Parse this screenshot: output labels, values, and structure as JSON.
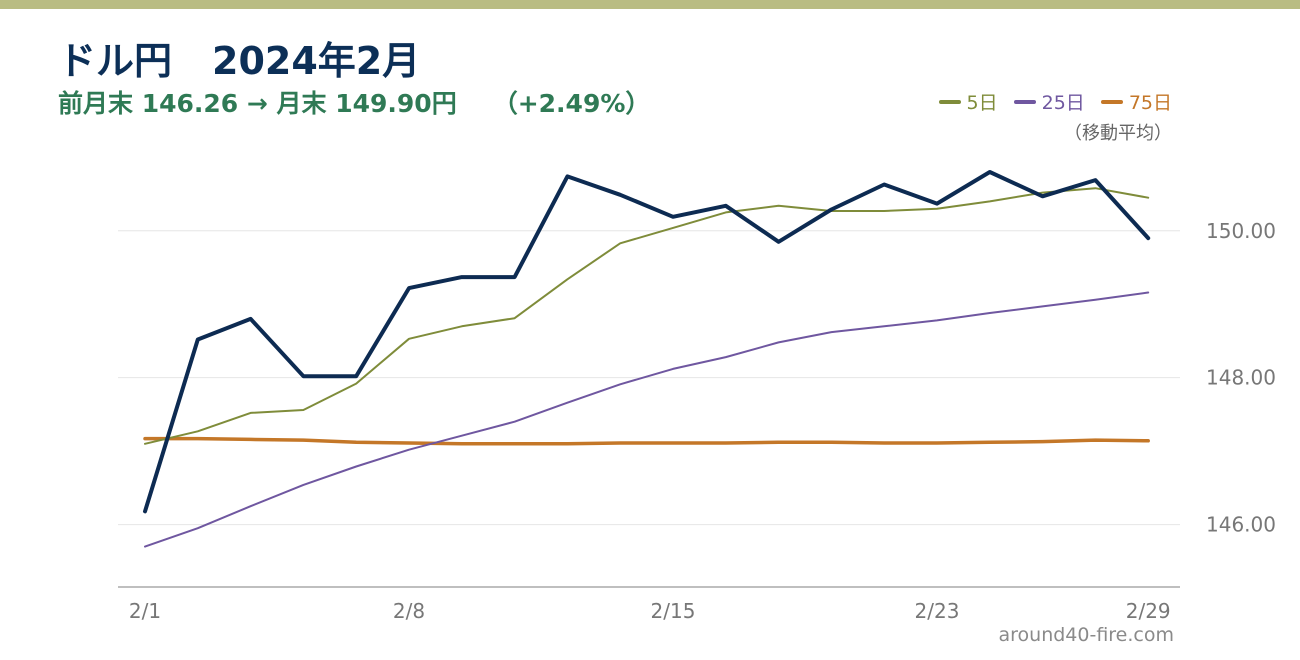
{
  "title": {
    "pair": "ドル円",
    "period": "2024年2月"
  },
  "subtitle": {
    "change_text": "前月末 146.26 → 月末 149.90円",
    "pct_text": "（+2.49%）"
  },
  "legend": {
    "note": "（移動平均）"
  },
  "watermark": "around40-fire.com",
  "colors": {
    "close": "#0d2b52",
    "ma5": "#7f8c3a",
    "ma25": "#6f57a0",
    "ma75": "#c47728",
    "grid": "#e6e6e6",
    "axis": "#aaaaaa"
  },
  "chart_data": {
    "type": "line",
    "x_ticks": [
      "2/1",
      "2/8",
      "2/15",
      "2/23",
      "2/29"
    ],
    "tick_index": [
      0,
      5,
      10,
      15,
      19
    ],
    "y_ticks": [
      "146.00",
      "148.00",
      "150.00"
    ],
    "y_tick_values": [
      146,
      148,
      150
    ],
    "ylim": [
      145.15,
      151.1
    ],
    "grid": "horizontal",
    "legend_position": "top-right",
    "series": [
      {
        "key": "close",
        "values": [
          146.18,
          148.52,
          148.8,
          148.02,
          148.02,
          149.22,
          149.37,
          149.37,
          150.74,
          150.49,
          150.19,
          150.34,
          149.85,
          150.29,
          150.63,
          150.37,
          150.8,
          150.47,
          150.69,
          149.9
        ]
      },
      {
        "key": "ma5",
        "name": "5日",
        "values": [
          147.1,
          147.27,
          147.52,
          147.56,
          147.92,
          148.53,
          148.7,
          148.81,
          149.34,
          149.83,
          150.04,
          150.25,
          150.34,
          150.27,
          150.27,
          150.3,
          150.4,
          150.52,
          150.58,
          150.45
        ]
      },
      {
        "key": "ma25",
        "name": "25日",
        "values": [
          145.7,
          145.95,
          146.25,
          146.54,
          146.79,
          147.02,
          147.21,
          147.4,
          147.66,
          147.91,
          148.12,
          148.28,
          148.48,
          148.62,
          148.7,
          148.78,
          148.88,
          148.97,
          149.06,
          149.16
        ]
      },
      {
        "key": "ma75",
        "name": "75日",
        "values": [
          147.17,
          147.17,
          147.16,
          147.15,
          147.12,
          147.11,
          147.1,
          147.1,
          147.1,
          147.11,
          147.11,
          147.11,
          147.12,
          147.12,
          147.11,
          147.11,
          147.12,
          147.13,
          147.15,
          147.14
        ]
      }
    ]
  }
}
